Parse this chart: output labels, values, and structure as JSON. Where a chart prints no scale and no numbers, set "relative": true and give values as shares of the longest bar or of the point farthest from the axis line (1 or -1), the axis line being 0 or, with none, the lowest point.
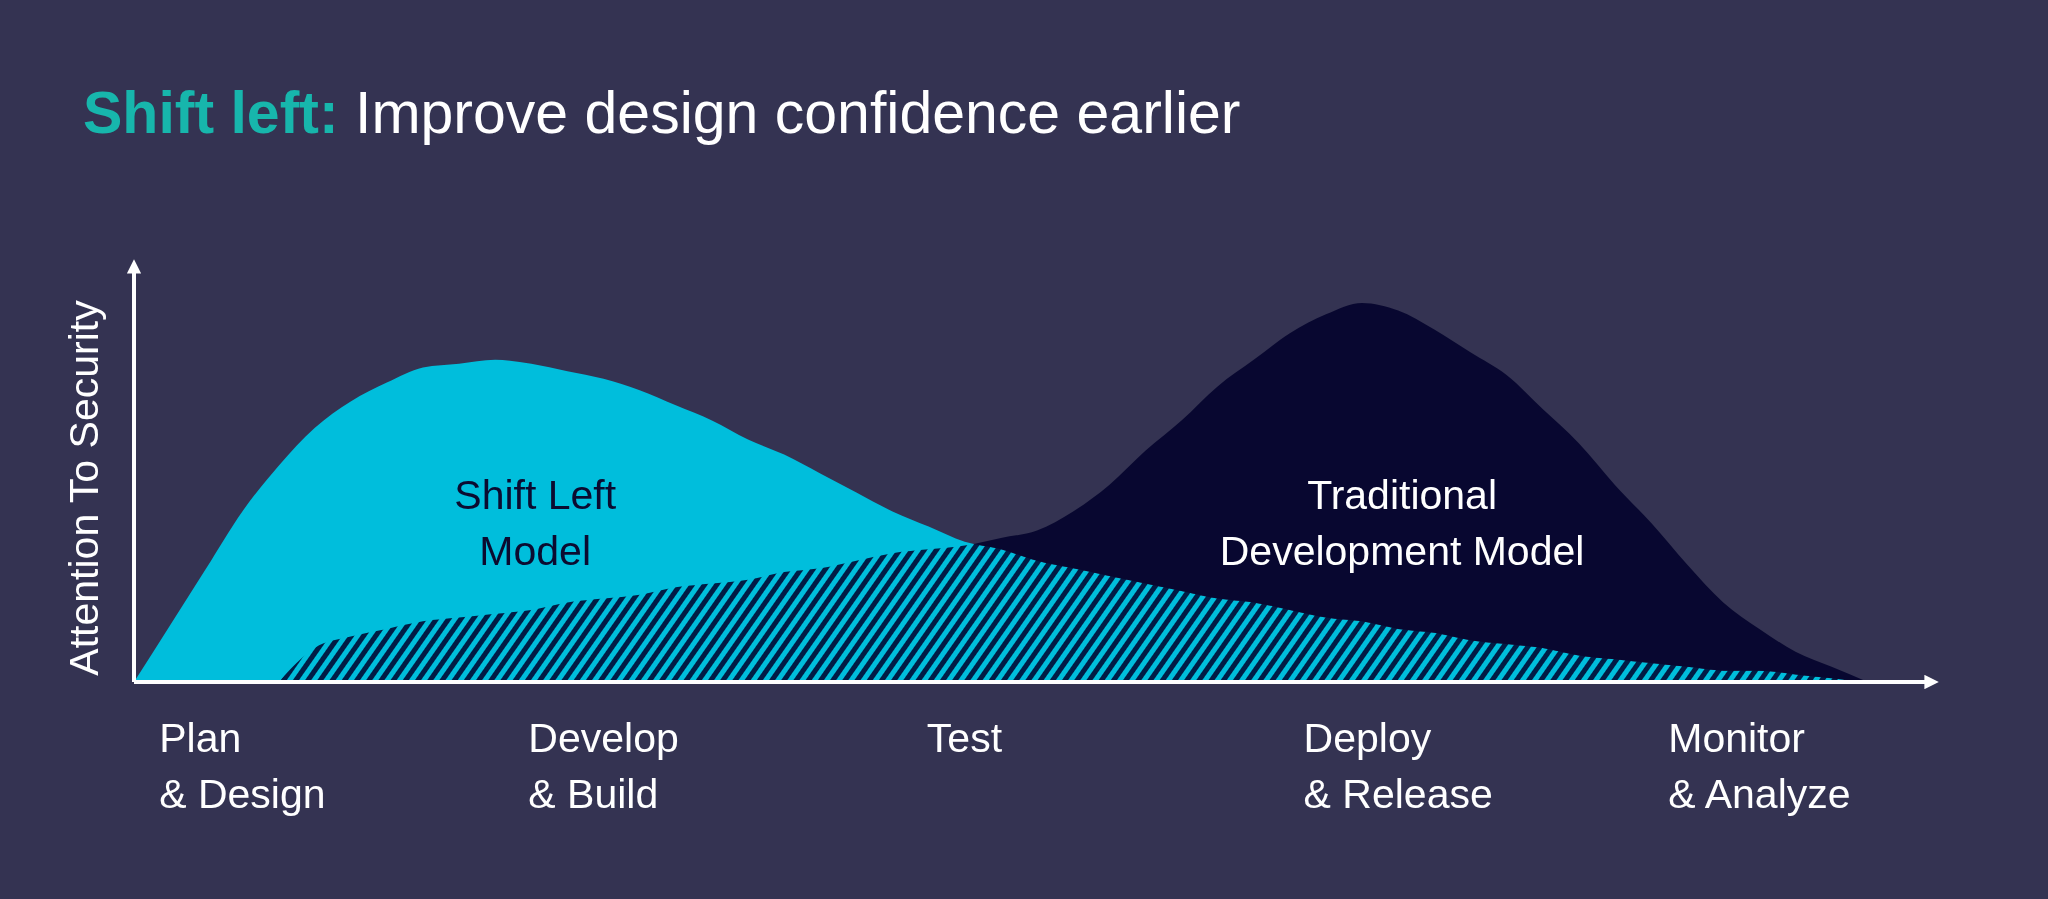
{
  "chart_data": {
    "type": "area",
    "title": "Shift left: Improve design confidence earlier",
    "ylabel": "Attention To Security",
    "relative": true,
    "categories": [
      null,
      null,
      null,
      "Plan\n& Design",
      null,
      null,
      null,
      null,
      null,
      null,
      null,
      null,
      null,
      "Develop\n& Build",
      null,
      null,
      null,
      null,
      null,
      null,
      null,
      null,
      null,
      "Test",
      null,
      null,
      null,
      null,
      null,
      null,
      null,
      null,
      null,
      null,
      null,
      "Deploy\n& Release",
      null,
      null,
      null,
      null,
      null,
      null,
      null,
      null,
      null,
      "Monitor\n& Analyze",
      null,
      null,
      null,
      null,
      null
    ],
    "series": [
      {
        "name": "Shift Left\nModel",
        "color": "#00bedc",
        "values": [
          0,
          0.15,
          0.3,
          0.45,
          0.57,
          0.67,
          0.74,
          0.79,
          0.83,
          0.84,
          0.85,
          0.84,
          0.82,
          0.8,
          0.77,
          0.73,
          0.69,
          0.64,
          0.6,
          0.55,
          0.5,
          0.45,
          0.41,
          0.37,
          0.35,
          0.32,
          0.3,
          0.28,
          0.26,
          0.24,
          0.22,
          0.21,
          0.19,
          0.17,
          0.16,
          0.14,
          0.13,
          0.11,
          0.1,
          0.09,
          0.07,
          0.06,
          0.05,
          0.04,
          0.03,
          0.03,
          0.02,
          0.01,
          0,
          null,
          null
        ]
      },
      {
        "name": "Traditional\nDevelopment Model",
        "color": "#01002a",
        "values": [
          null,
          null,
          null,
          null,
          0,
          0.09,
          0.12,
          0.14,
          0.16,
          0.17,
          0.18,
          0.19,
          0.21,
          0.22,
          0.23,
          0.25,
          0.26,
          0.27,
          0.29,
          0.3,
          0.32,
          0.34,
          0.35,
          0.36,
          0.38,
          0.4,
          0.45,
          0.52,
          0.61,
          0.69,
          0.78,
          0.85,
          0.92,
          0.97,
          1,
          0.98,
          0.93,
          0.87,
          0.81,
          0.72,
          0.63,
          0.52,
          0.42,
          0.31,
          0.21,
          0.14,
          0.08,
          0.04,
          0,
          null,
          null
        ]
      }
    ]
  }
}
